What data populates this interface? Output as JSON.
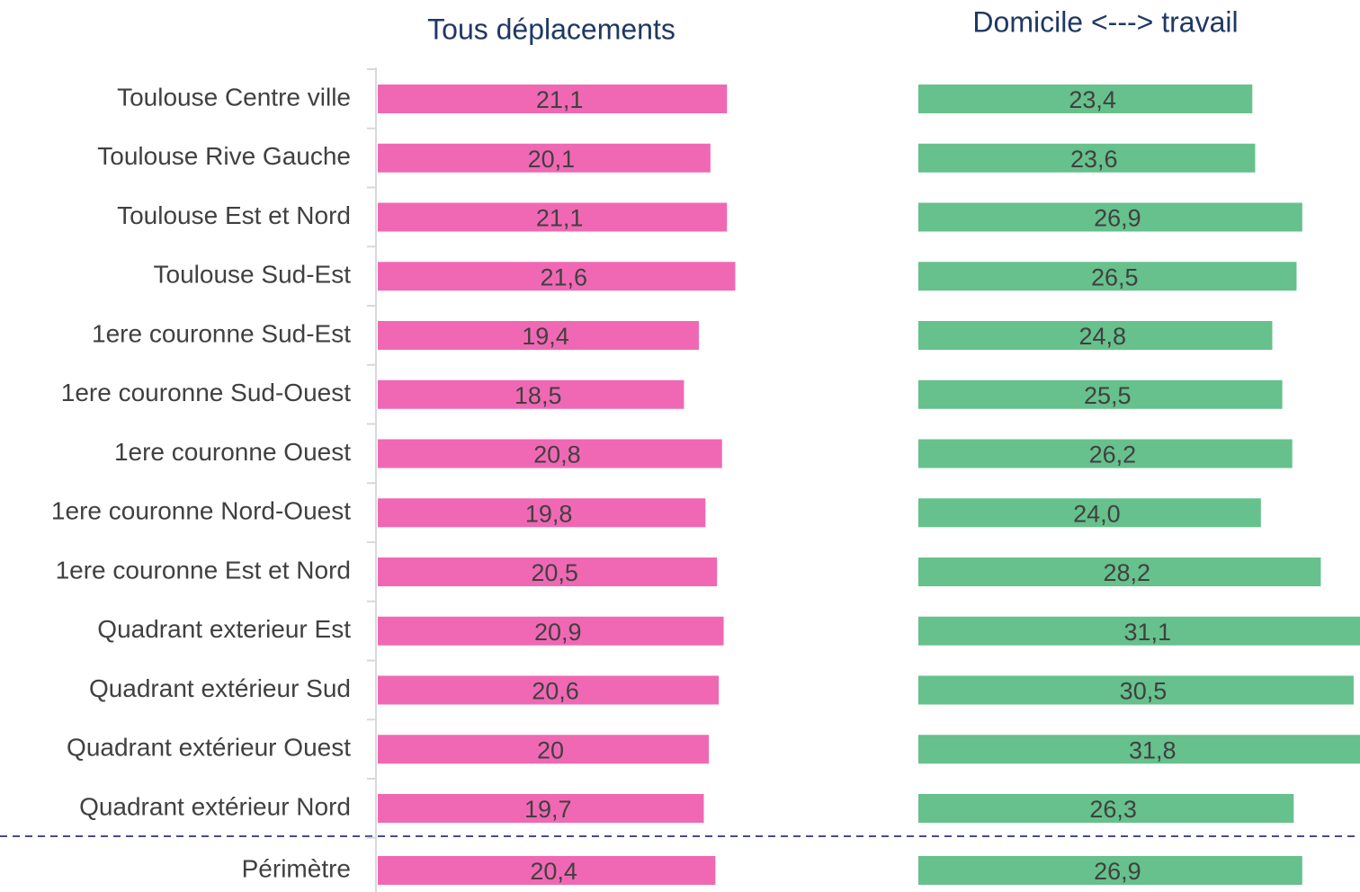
{
  "chart_data": [
    {
      "type": "bar",
      "orientation": "horizontal",
      "title": "Tous déplacements",
      "categories": [
        "Toulouse Centre ville",
        "Toulouse Rive Gauche",
        "Toulouse Est et Nord",
        "Toulouse Sud-Est",
        "1ere couronne Sud-Est",
        "1ere couronne Sud-Ouest",
        "1ere couronne Ouest",
        "1ere couronne Nord-Ouest",
        "1ere couronne Est et Nord",
        "Quadrant exterieur Est",
        "Quadrant extérieur Sud",
        "Quadrant extérieur Ouest",
        "Quadrant extérieur Nord",
        "Périmètre"
      ],
      "values": [
        21.1,
        20.1,
        21.1,
        21.6,
        19.4,
        18.5,
        20.8,
        19.8,
        20.5,
        20.9,
        20.6,
        20,
        19.7,
        20.4
      ],
      "value_labels": [
        "21,1",
        "20,1",
        "21,1",
        "21,6",
        "19,4",
        "18,5",
        "20,8",
        "19,8",
        "20,5",
        "20,9",
        "20,6",
        "20",
        "19,7",
        "20,4"
      ],
      "color": "#f068b4",
      "xlim": [
        0,
        25
      ]
    },
    {
      "type": "bar",
      "orientation": "horizontal",
      "title": "Domicile <---> travail",
      "values": [
        23.4,
        23.6,
        26.9,
        26.5,
        24.8,
        25.5,
        26.2,
        24.0,
        28.2,
        31.1,
        30.5,
        31.8,
        26.3,
        26.9
      ],
      "value_labels": [
        "23,4",
        "23,6",
        "26,9",
        "26,5",
        "24,8",
        "25,5",
        "26,2",
        "24,0",
        "28,2",
        "31,1",
        "30,5",
        "31,8",
        "26,3",
        "26,9"
      ],
      "color": "#66c18c",
      "xlim": [
        0,
        30
      ]
    }
  ]
}
